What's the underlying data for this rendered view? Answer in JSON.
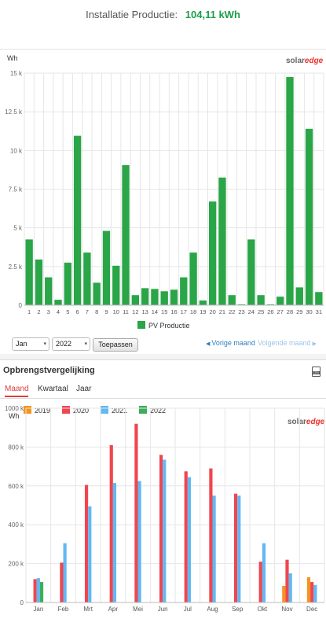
{
  "summary": {
    "label": "Installatie Productie:",
    "value": "104,11 kWh"
  },
  "logo": {
    "brand": "solar",
    "brand_accent": "edge"
  },
  "daily": {
    "legend_label": "PV Productie",
    "month_select": "Jan",
    "year_select": "2022",
    "apply_label": "Toepassen",
    "prev_label": "Vorige maand",
    "next_label": "Volgende maand",
    "bar_color": "#2aa548",
    "arrow_left": "◀",
    "arrow_right": "▶",
    "caret": "▾"
  },
  "compare": {
    "title": "Opbrengstvergelijking",
    "csv_icon": "csv-export-icon",
    "tabs": [
      "Maand",
      "Kwartaal",
      "Jaar"
    ],
    "active_tab": "Maand"
  },
  "chart_data": [
    {
      "type": "bar",
      "ylabel": "Wh",
      "ylim": [
        0,
        15000
      ],
      "yticks": [
        "0",
        "2.5 k",
        "5 k",
        "7.5 k",
        "10 k",
        "12.5 k",
        "15 k"
      ],
      "ytick_values": [
        0,
        2500,
        5000,
        7500,
        10000,
        12500,
        15000
      ],
      "categories": [
        "1",
        "2",
        "3",
        "4",
        "5",
        "6",
        "7",
        "8",
        "9",
        "10",
        "11",
        "12",
        "13",
        "14",
        "15",
        "16",
        "17",
        "18",
        "19",
        "20",
        "21",
        "22",
        "23",
        "24",
        "25",
        "26",
        "27",
        "28",
        "29",
        "30",
        "31"
      ],
      "series": [
        {
          "name": "PV Productie",
          "color": "#2aa548",
          "values": [
            4250,
            2950,
            1800,
            350,
            2750,
            10950,
            3400,
            1450,
            4800,
            2550,
            9050,
            650,
            1100,
            1050,
            900,
            1000,
            1800,
            3400,
            300,
            6700,
            8250,
            650,
            50,
            4250,
            650,
            50,
            550,
            14750,
            1150,
            11400,
            850
          ]
        }
      ],
      "grid": true,
      "legend": "bottom-center"
    },
    {
      "type": "bar",
      "ylabel": "Wh",
      "ylim": [
        0,
        1000000
      ],
      "yticks": [
        "0",
        "200 k",
        "400 k",
        "600 k",
        "800 k",
        "1000 k"
      ],
      "ytick_values": [
        0,
        200000,
        400000,
        600000,
        800000,
        1000000
      ],
      "categories": [
        "Jan",
        "Feb",
        "Mrt",
        "Apr",
        "Mei",
        "Jun",
        "Jul",
        "Aug",
        "Sep",
        "Okt",
        "Nov",
        "Dec"
      ],
      "series": [
        {
          "name": "2019",
          "color": "#f7941d",
          "values": [
            null,
            null,
            null,
            null,
            null,
            null,
            null,
            null,
            null,
            null,
            85000,
            130000
          ]
        },
        {
          "name": "2020",
          "color": "#ef4650",
          "values": [
            120000,
            205000,
            605000,
            810000,
            920000,
            760000,
            675000,
            690000,
            560000,
            210000,
            220000,
            105000
          ]
        },
        {
          "name": "2021",
          "color": "#62b8f3",
          "values": [
            125000,
            305000,
            495000,
            615000,
            625000,
            735000,
            645000,
            550000,
            550000,
            305000,
            150000,
            90000
          ]
        },
        {
          "name": "2022",
          "color": "#3bae5a",
          "values": [
            105000,
            null,
            null,
            null,
            null,
            null,
            null,
            null,
            null,
            null,
            null,
            null
          ]
        }
      ],
      "grid": true,
      "legend": "top-left"
    }
  ]
}
